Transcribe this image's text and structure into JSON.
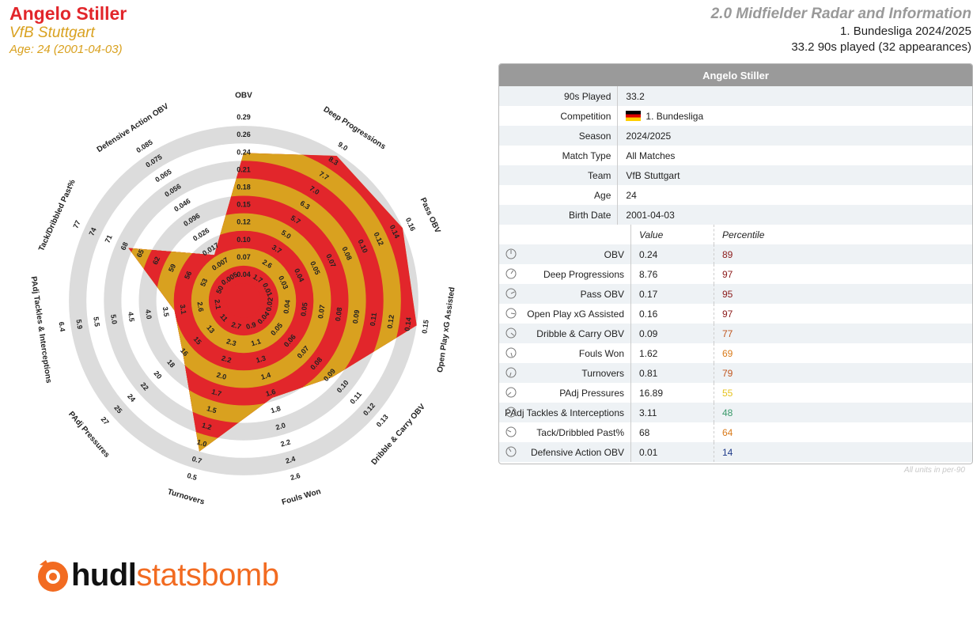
{
  "header": {
    "player_name": "Angelo Stiller",
    "team": "VfB Stuttgart",
    "age_line": "Age: 24 (2001-04-03)",
    "radar_title": "2.0 Midfielder Radar and Information",
    "competition_line": "1. Bundesliga 2024/2025",
    "played_line": "33.2 90s played (32 appearances)"
  },
  "colors": {
    "red": "#e2262b",
    "gold": "#d9a11f",
    "ring_grey": "#dcdcdc"
  },
  "chart_data": {
    "type": "radar",
    "metrics": [
      {
        "name": "OBV",
        "ticks": [
          "0.04",
          "0.07",
          "0.10",
          "0.12",
          "0.15",
          "0.18",
          "0.21",
          "0.24",
          "0.26",
          "0.29"
        ],
        "value": 0.24,
        "fraction": 0.745
      },
      {
        "name": "Deep Progressions",
        "ticks": [
          "1.7",
          "2.6",
          "3.7",
          "5.0",
          "5.7",
          "6.3",
          "7.0",
          "7.7",
          "8.3",
          "9.0"
        ],
        "value": 8.76,
        "fraction": 0.885
      },
      {
        "name": "Pass OBV",
        "ticks": [
          "0.01",
          "0.03",
          "0.04",
          "0.05",
          "0.07",
          "0.08",
          "0.10",
          "0.12",
          "0.14",
          "0.16"
        ],
        "value": 0.17,
        "fraction": 0.9
      },
      {
        "name": "Open Play xG Assisted",
        "ticks": [
          "0.02",
          "0.04",
          "0.05",
          "0.07",
          "0.08",
          "0.09",
          "0.11",
          "0.12",
          "0.14",
          "0.15"
        ],
        "value": 0.16,
        "fraction": 0.9
      },
      {
        "name": "Dribble & Carry OBV",
        "ticks": [
          "0.04",
          "0.05",
          "0.06",
          "0.07",
          "0.08",
          "0.09",
          "0.10",
          "0.11",
          "0.12",
          "0.13"
        ],
        "value": 0.09,
        "fraction": 0.57
      },
      {
        "name": "Fouls Won",
        "ticks": [
          "0.9",
          "1.1",
          "1.3",
          "1.4",
          "1.6",
          "1.8",
          "2.0",
          "2.2",
          "2.4",
          "2.6"
        ],
        "value": 1.62,
        "fraction": 0.48
      },
      {
        "name": "Turnovers",
        "ticks": [
          "2.7",
          "2.3",
          "2.2",
          "2.0",
          "1.7",
          "1.5",
          "1.2",
          "1.0",
          "0.7",
          "0.5"
        ],
        "value": 0.81,
        "fraction": 0.8
      },
      {
        "name": "PAdj Pressures",
        "ticks": [
          "11",
          "13",
          "15",
          "16",
          "18",
          "20",
          "22",
          "24",
          "25",
          "27"
        ],
        "value": 16.89,
        "fraction": 0.36
      },
      {
        "name": "PAdj Tackles & Interceptions",
        "ticks": [
          "2.1",
          "2.6",
          "3.1",
          "3.5",
          "4.0",
          "4.5",
          "5.0",
          "5.5",
          "5.9",
          "6.4"
        ],
        "value": 3.11,
        "fraction": 0.3
      },
      {
        "name": "Tack/Dribbled Past%",
        "ticks": [
          "50",
          "53",
          "56",
          "59",
          "62",
          "65",
          "68",
          "71",
          "74",
          "77"
        ],
        "value": 68,
        "fraction": 0.625
      },
      {
        "name": "Defensive Action OBV",
        "ticks": [
          "0.005",
          "0.007",
          "0.017",
          "0.026",
          "0.096",
          "0.046",
          "0.056",
          "0.065",
          "0.075",
          "0.085"
        ],
        "value": 0.01,
        "fraction": 0.21
      }
    ]
  },
  "table": {
    "title": "Angelo Stiller",
    "info_rows": [
      {
        "label": "90s Played",
        "value": "33.2"
      },
      {
        "label": "Competition",
        "value": "1. Bundesliga"
      },
      {
        "label": "Season",
        "value": "2024/2025"
      },
      {
        "label": "Match Type",
        "value": "All Matches"
      },
      {
        "label": "Team",
        "value": "VfB Stuttgart"
      },
      {
        "label": "Age",
        "value": "24"
      },
      {
        "label": "Birth Date",
        "value": "2001-04-03"
      }
    ],
    "col_value": "Value",
    "col_percentile": "Percentile",
    "metric_rows": [
      {
        "label": "OBV",
        "value": "0.24",
        "percentile": "89",
        "pct_color": "#8b1a1a"
      },
      {
        "label": "Deep Progressions",
        "value": "8.76",
        "percentile": "97",
        "pct_color": "#8b1a1a"
      },
      {
        "label": "Pass OBV",
        "value": "0.17",
        "percentile": "95",
        "pct_color": "#8b1a1a"
      },
      {
        "label": "Open Play xG Assisted",
        "value": "0.16",
        "percentile": "97",
        "pct_color": "#8b1a1a"
      },
      {
        "label": "Dribble & Carry OBV",
        "value": "0.09",
        "percentile": "77",
        "pct_color": "#c0561d"
      },
      {
        "label": "Fouls Won",
        "value": "1.62",
        "percentile": "69",
        "pct_color": "#d97a1a"
      },
      {
        "label": "Turnovers",
        "value": "0.81",
        "percentile": "79",
        "pct_color": "#c0561d"
      },
      {
        "label": "PAdj Pressures",
        "value": "16.89",
        "percentile": "55",
        "pct_color": "#e6c21d"
      },
      {
        "label": "PAdj Tackles & Interceptions",
        "value": "3.11",
        "percentile": "48",
        "pct_color": "#3a9a6a"
      },
      {
        "label": "Tack/Dribbled Past%",
        "value": "68",
        "percentile": "64",
        "pct_color": "#d97a1a"
      },
      {
        "label": "Defensive Action OBV",
        "value": "0.01",
        "percentile": "14",
        "pct_color": "#1f3b8a"
      }
    ],
    "note": "All units in per-90"
  },
  "logo": {
    "hudl": "hudl",
    "statsbomb": "statsbomb"
  }
}
